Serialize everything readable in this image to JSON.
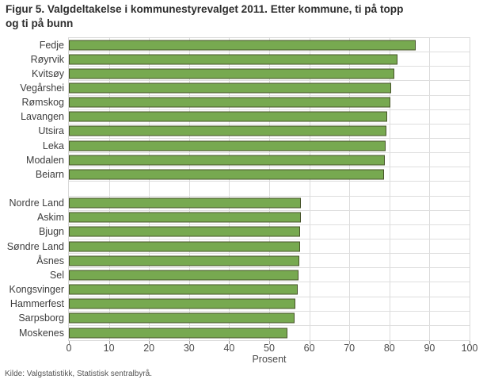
{
  "chart_data": {
    "type": "bar",
    "orientation": "horizontal",
    "title": "Figur 5. Valgdeltakelse i kommunestyrevalget 2011. Etter kommune, ti på topp\nog ti på bunn",
    "xlabel": "Prosent",
    "ylabel": "",
    "xlim": [
      0,
      100
    ],
    "xticks": [
      0,
      10,
      20,
      30,
      40,
      50,
      60,
      70,
      80,
      90,
      100
    ],
    "grid": "vertical major gridlines and horizontal row separators, light gray",
    "legend": "none",
    "gap_after_group_index": 0,
    "groups": [
      {
        "name": "ti på topp",
        "items": [
          {
            "label": "Fedje",
            "value": 86.6
          },
          {
            "label": "Røyrvik",
            "value": 82.1
          },
          {
            "label": "Kvitsøy",
            "value": 81.3
          },
          {
            "label": "Vegårshei",
            "value": 80.4
          },
          {
            "label": "Rømskog",
            "value": 80.3
          },
          {
            "label": "Lavangen",
            "value": 79.5
          },
          {
            "label": "Utsira",
            "value": 79.3
          },
          {
            "label": "Leka",
            "value": 79.1
          },
          {
            "label": "Modalen",
            "value": 78.9
          },
          {
            "label": "Beiarn",
            "value": 78.7
          }
        ]
      },
      {
        "name": "ti på bunn",
        "items": [
          {
            "label": "Nordre Land",
            "value": 58.0
          },
          {
            "label": "Askim",
            "value": 57.9
          },
          {
            "label": "Bjugn",
            "value": 57.8
          },
          {
            "label": "Søndre Land",
            "value": 57.7
          },
          {
            "label": "Åsnes",
            "value": 57.5
          },
          {
            "label": "Sel",
            "value": 57.3
          },
          {
            "label": "Kongsvinger",
            "value": 57.1
          },
          {
            "label": "Hammerfest",
            "value": 56.5
          },
          {
            "label": "Sarpsborg",
            "value": 56.3
          },
          {
            "label": "Moskenes",
            "value": 54.5
          }
        ]
      }
    ],
    "colors": {
      "bar_fill": "#77A950",
      "bar_border": "#47542A",
      "gridline": "#DCDCDC",
      "title_text": "#2E2E2E",
      "axis_text": "#4A4A4A"
    },
    "source": "Kilde: Valgstatistikk, Statistisk sentralbyrå."
  }
}
